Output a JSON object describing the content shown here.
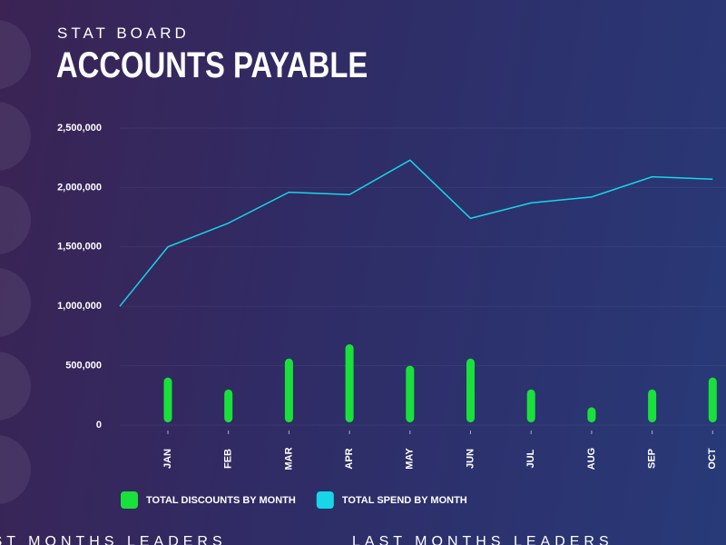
{
  "header": {
    "kicker": "STAT BOARD",
    "title": "ACCOUNTS PAYABLE"
  },
  "chart_data": {
    "type": "bar-line",
    "categories": [
      null,
      "JAN",
      "FEB",
      "MAR",
      "APR",
      "MAY",
      "JUN",
      "JUL",
      "AUG",
      "SEP",
      "OCT"
    ],
    "series": [
      {
        "name": "TOTAL DISCOUNTS BY MONTH",
        "type": "bar",
        "color": "#19e03a",
        "values": [
          null,
          400000,
          300000,
          560000,
          680000,
          500000,
          560000,
          300000,
          150000,
          300000,
          400000
        ]
      },
      {
        "name": "TOTAL SPEND BY MONTH",
        "type": "line",
        "color": "#16d6e8",
        "values": [
          1000000,
          1500000,
          1700000,
          1960000,
          1940000,
          2230000,
          1740000,
          1870000,
          1920000,
          2090000,
          2070000
        ]
      }
    ],
    "ylim": [
      0,
      2500000
    ],
    "yticks": [
      {
        "value": 0,
        "label": "0"
      },
      {
        "value": 500000,
        "label": "500,000"
      },
      {
        "value": 1000000,
        "label": "1,000,000"
      },
      {
        "value": 1500000,
        "label": "1,500,000"
      },
      {
        "value": 2000000,
        "label": "2,000,000"
      },
      {
        "value": 2500000,
        "label": "2,500,000"
      }
    ],
    "grid": true,
    "legend": "bottom"
  },
  "footer": {
    "left": "LAST MONTHS LEADERS",
    "right": "LAST MONTHS LEADERS"
  }
}
